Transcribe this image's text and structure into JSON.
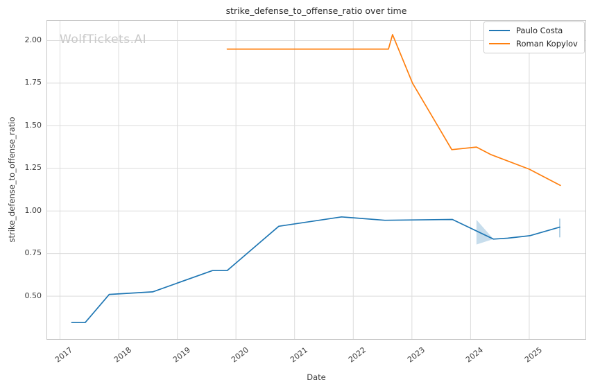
{
  "watermark": "WolfTickets.AI",
  "chart_data": {
    "type": "line",
    "title": "strike_defense_to_offense_ratio over time",
    "xlabel": "Date",
    "ylabel": "strike_defense_to_offense_ratio",
    "grid": true,
    "legend_position": "upper-right",
    "background_color": "#ffffff",
    "grid_color": "#dcdcdc",
    "spine_color": "#c6c6c6",
    "text_color": "#3a3a3a",
    "watermark_color": "#c9c9c9",
    "xlim": [
      2016.77,
      2025.97
    ],
    "ylim": [
      0.244,
      2.12
    ],
    "x_ticks": [
      2017,
      2018,
      2019,
      2020,
      2021,
      2022,
      2023,
      2024,
      2025
    ],
    "x_tick_labels": [
      "2017",
      "2018",
      "2019",
      "2020",
      "2021",
      "2022",
      "2023",
      "2024",
      "2025"
    ],
    "y_ticks": [
      0.5,
      0.75,
      1.0,
      1.25,
      1.5,
      1.75,
      2.0
    ],
    "y_tick_labels": [
      "0.50",
      "0.75",
      "1.00",
      "1.25",
      "1.50",
      "1.75",
      "2.00"
    ],
    "series": [
      {
        "name": "Paulo Costa",
        "color": "#1f77b4",
        "points": [
          [
            2017.2,
            0.345
          ],
          [
            2017.43,
            0.345
          ],
          [
            2017.84,
            0.51
          ],
          [
            2018.58,
            0.525
          ],
          [
            2019.6,
            0.65
          ],
          [
            2019.85,
            0.65
          ],
          [
            2020.73,
            0.91
          ],
          [
            2021.8,
            0.965
          ],
          [
            2022.54,
            0.945
          ],
          [
            2023.69,
            0.95
          ],
          [
            2024.39,
            0.835
          ],
          [
            2024.63,
            0.84
          ],
          [
            2025.01,
            0.855
          ],
          [
            2025.52,
            0.905
          ]
        ]
      },
      {
        "name": "Roman Kopylov",
        "color": "#ff7f0e",
        "points": [
          [
            2019.85,
            1.95
          ],
          [
            2022.6,
            1.95
          ],
          [
            2022.67,
            2.035
          ],
          [
            2023.01,
            1.75
          ],
          [
            2023.68,
            1.36
          ],
          [
            2024.1,
            1.375
          ],
          [
            2024.35,
            1.33
          ],
          [
            2025.0,
            1.245
          ],
          [
            2025.53,
            1.15
          ]
        ]
      }
    ],
    "uncertainty": {
      "series": "Paulo Costa",
      "color": "#1f77b4",
      "band_polygon": [
        [
          2024.1,
          0.948
        ],
        [
          2024.39,
          0.835
        ],
        [
          2024.1,
          0.803
        ]
      ],
      "band_opacity": 0.25,
      "end_whisker": {
        "x": 2025.52,
        "low": 0.845,
        "high": 0.955,
        "opacity": 0.4
      }
    }
  }
}
